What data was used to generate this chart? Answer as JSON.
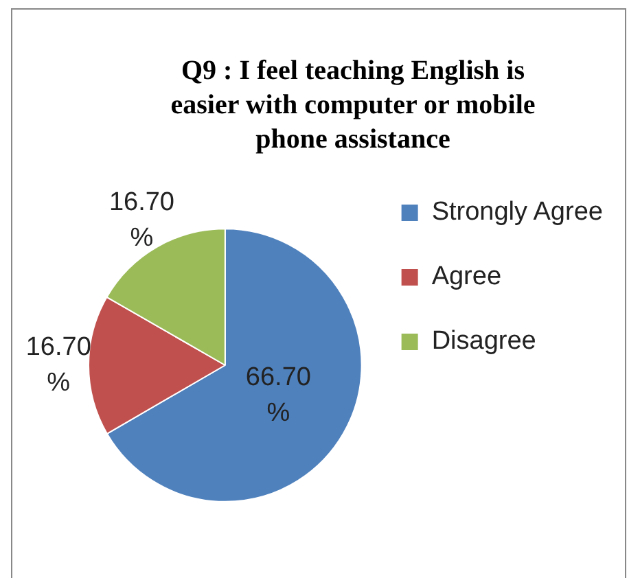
{
  "chart_data": {
    "type": "pie",
    "title": "Q9 : I feel teaching English is easier with computer or mobile phone assistance",
    "categories": [
      "Strongly Agree",
      "Agree",
      "Disagree"
    ],
    "values": [
      66.7,
      16.7,
      16.7
    ],
    "value_labels": [
      "66.70 %",
      "16.70 %",
      "16.70 %"
    ],
    "colors": [
      "#4f81bd",
      "#c0504d",
      "#9bbb59"
    ],
    "legend": "right"
  }
}
